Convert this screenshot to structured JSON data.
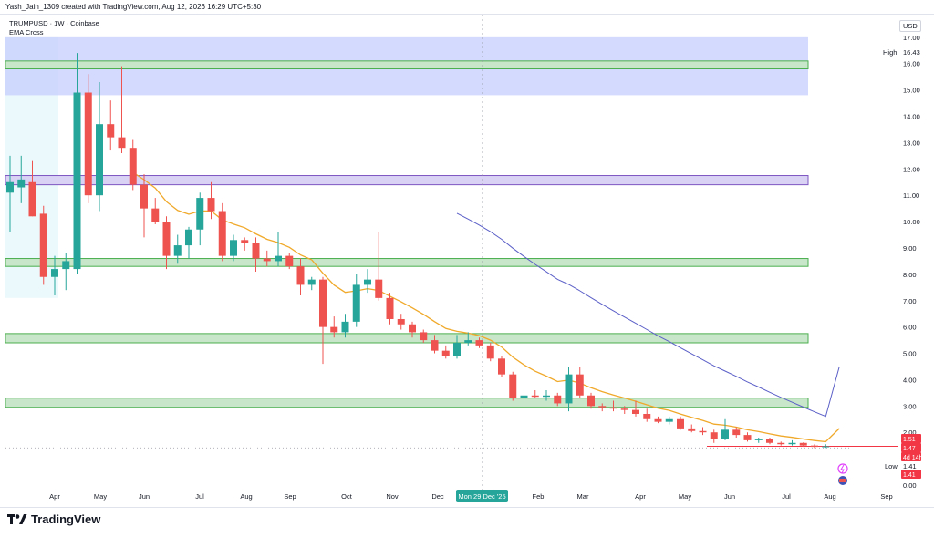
{
  "header": {
    "text": "Yash_Jain_1309 created with TradingView.com, Aug 12, 2026 16:29 UTC+5:30"
  },
  "legend": {
    "symbol": "TRUMPUSD · 1W · Coinbase",
    "indicator": "EMA Cross"
  },
  "currency": "USD",
  "brand": {
    "name": "TradingView"
  },
  "colors": {
    "up": "#26a69a",
    "down": "#ef5350",
    "ema_fast": "#f0a92a",
    "ema_slow": "#5b5fc7",
    "zone_green": "#c8e6c9",
    "zone_green_border": "#4caf50",
    "zone_blue": "#c5cdfd",
    "zone_purple": "#d9d2f5",
    "zone_purple_border": "#7e57c2",
    "last_price": "#f23645"
  },
  "chart_data": {
    "type": "candlestick",
    "title": "TRUMPUSD · 1W · Coinbase",
    "ylim": [
      0,
      17.6
    ],
    "y_ticks": [
      "17.00",
      "16.00",
      "15.00",
      "14.00",
      "13.00",
      "12.00",
      "11.00",
      "10.00",
      "9.00",
      "8.00",
      "7.00",
      "6.00",
      "5.00",
      "4.00",
      "3.00",
      "2.00",
      "0.00"
    ],
    "x_ticks": [
      "Apr",
      "May",
      "Jun",
      "Jul",
      "Aug",
      "Sep",
      "Oct",
      "Nov",
      "Dec",
      "Feb",
      "Mar",
      "Apr",
      "May",
      "Jun",
      "Jul",
      "Aug",
      "Sep"
    ],
    "crosshair_label": "Mon 29 Dec '25",
    "candles": [
      {
        "o": 11.1,
        "h": 12.5,
        "l": 9.6,
        "c": 11.5
      },
      {
        "o": 11.3,
        "h": 12.5,
        "l": 10.7,
        "c": 11.6
      },
      {
        "o": 11.5,
        "h": 12.3,
        "l": 10.2,
        "c": 10.2
      },
      {
        "o": 10.3,
        "h": 10.6,
        "l": 7.6,
        "c": 7.9
      },
      {
        "o": 7.9,
        "h": 8.7,
        "l": 7.2,
        "c": 8.2
      },
      {
        "o": 8.2,
        "h": 8.8,
        "l": 7.4,
        "c": 8.5
      },
      {
        "o": 8.2,
        "h": 16.4,
        "l": 8.0,
        "c": 14.9
      },
      {
        "o": 14.9,
        "h": 15.6,
        "l": 10.7,
        "c": 11.0
      },
      {
        "o": 11.0,
        "h": 15.3,
        "l": 10.4,
        "c": 13.7
      },
      {
        "o": 13.7,
        "h": 14.6,
        "l": 12.7,
        "c": 13.2
      },
      {
        "o": 13.2,
        "h": 15.9,
        "l": 12.6,
        "c": 12.8
      },
      {
        "o": 12.8,
        "h": 13.1,
        "l": 11.2,
        "c": 11.4
      },
      {
        "o": 11.4,
        "h": 11.8,
        "l": 9.4,
        "c": 10.5
      },
      {
        "o": 10.5,
        "h": 10.9,
        "l": 9.9,
        "c": 10.0
      },
      {
        "o": 10.0,
        "h": 10.2,
        "l": 8.2,
        "c": 8.7
      },
      {
        "o": 8.7,
        "h": 9.5,
        "l": 8.4,
        "c": 9.1
      },
      {
        "o": 9.1,
        "h": 9.8,
        "l": 8.6,
        "c": 9.7
      },
      {
        "o": 9.7,
        "h": 11.1,
        "l": 9.1,
        "c": 10.9
      },
      {
        "o": 10.9,
        "h": 11.5,
        "l": 10.1,
        "c": 10.4
      },
      {
        "o": 10.4,
        "h": 10.7,
        "l": 8.5,
        "c": 8.7
      },
      {
        "o": 8.7,
        "h": 9.5,
        "l": 8.5,
        "c": 9.3
      },
      {
        "o": 9.3,
        "h": 9.4,
        "l": 8.9,
        "c": 9.2
      },
      {
        "o": 9.2,
        "h": 9.4,
        "l": 8.1,
        "c": 8.6
      },
      {
        "o": 8.6,
        "h": 8.9,
        "l": 8.3,
        "c": 8.5
      },
      {
        "o": 8.5,
        "h": 9.6,
        "l": 8.3,
        "c": 8.7
      },
      {
        "o": 8.7,
        "h": 8.8,
        "l": 8.2,
        "c": 8.3
      },
      {
        "o": 8.3,
        "h": 8.6,
        "l": 7.2,
        "c": 7.6
      },
      {
        "o": 7.6,
        "h": 7.9,
        "l": 7.4,
        "c": 7.8
      },
      {
        "o": 7.8,
        "h": 7.9,
        "l": 4.6,
        "c": 6.0
      },
      {
        "o": 6.0,
        "h": 6.4,
        "l": 5.6,
        "c": 5.8
      },
      {
        "o": 5.8,
        "h": 6.5,
        "l": 5.6,
        "c": 6.2
      },
      {
        "o": 6.2,
        "h": 8.0,
        "l": 6.0,
        "c": 7.6
      },
      {
        "o": 7.6,
        "h": 8.2,
        "l": 7.3,
        "c": 7.8
      },
      {
        "o": 7.8,
        "h": 9.6,
        "l": 7.0,
        "c": 7.1
      },
      {
        "o": 7.1,
        "h": 7.3,
        "l": 6.1,
        "c": 6.3
      },
      {
        "o": 6.3,
        "h": 6.5,
        "l": 5.9,
        "c": 6.1
      },
      {
        "o": 6.1,
        "h": 6.2,
        "l": 5.6,
        "c": 5.8
      },
      {
        "o": 5.8,
        "h": 5.9,
        "l": 5.4,
        "c": 5.5
      },
      {
        "o": 5.5,
        "h": 5.7,
        "l": 5.0,
        "c": 5.1
      },
      {
        "o": 5.1,
        "h": 5.3,
        "l": 4.8,
        "c": 4.9
      },
      {
        "o": 4.9,
        "h": 5.7,
        "l": 4.8,
        "c": 5.4
      },
      {
        "o": 5.4,
        "h": 5.8,
        "l": 5.3,
        "c": 5.5
      },
      {
        "o": 5.5,
        "h": 5.6,
        "l": 5.2,
        "c": 5.3
      },
      {
        "o": 5.3,
        "h": 5.4,
        "l": 4.7,
        "c": 4.8
      },
      {
        "o": 4.8,
        "h": 4.9,
        "l": 4.1,
        "c": 4.2
      },
      {
        "o": 4.2,
        "h": 4.3,
        "l": 3.2,
        "c": 3.3
      },
      {
        "o": 3.3,
        "h": 3.6,
        "l": 3.1,
        "c": 3.4
      },
      {
        "o": 3.4,
        "h": 3.6,
        "l": 3.3,
        "c": 3.35
      },
      {
        "o": 3.35,
        "h": 3.6,
        "l": 3.2,
        "c": 3.4
      },
      {
        "o": 3.4,
        "h": 3.5,
        "l": 3.0,
        "c": 3.1
      },
      {
        "o": 3.1,
        "h": 4.5,
        "l": 2.8,
        "c": 4.2
      },
      {
        "o": 4.2,
        "h": 4.5,
        "l": 3.3,
        "c": 3.4
      },
      {
        "o": 3.4,
        "h": 3.5,
        "l": 2.9,
        "c": 3.0
      },
      {
        "o": 3.0,
        "h": 3.1,
        "l": 2.8,
        "c": 2.95
      },
      {
        "o": 2.95,
        "h": 3.2,
        "l": 2.8,
        "c": 2.9
      },
      {
        "o": 2.9,
        "h": 3.0,
        "l": 2.7,
        "c": 2.85
      },
      {
        "o": 2.85,
        "h": 3.2,
        "l": 2.6,
        "c": 2.7
      },
      {
        "o": 2.7,
        "h": 2.9,
        "l": 2.4,
        "c": 2.5
      },
      {
        "o": 2.5,
        "h": 2.6,
        "l": 2.35,
        "c": 2.4
      },
      {
        "o": 2.4,
        "h": 2.6,
        "l": 2.3,
        "c": 2.5
      },
      {
        "o": 2.5,
        "h": 2.6,
        "l": 2.1,
        "c": 2.15
      },
      {
        "o": 2.15,
        "h": 2.3,
        "l": 2.0,
        "c": 2.05
      },
      {
        "o": 2.05,
        "h": 2.2,
        "l": 1.9,
        "c": 2.0
      },
      {
        "o": 2.0,
        "h": 2.1,
        "l": 1.6,
        "c": 1.75
      },
      {
        "o": 1.75,
        "h": 2.5,
        "l": 1.7,
        "c": 2.1
      },
      {
        "o": 2.1,
        "h": 2.2,
        "l": 1.8,
        "c": 1.9
      },
      {
        "o": 1.9,
        "h": 2.0,
        "l": 1.65,
        "c": 1.7
      },
      {
        "o": 1.7,
        "h": 1.8,
        "l": 1.6,
        "c": 1.75
      },
      {
        "o": 1.75,
        "h": 1.8,
        "l": 1.55,
        "c": 1.6
      },
      {
        "o": 1.6,
        "h": 1.65,
        "l": 1.5,
        "c": 1.55
      },
      {
        "o": 1.55,
        "h": 1.7,
        "l": 1.5,
        "c": 1.6
      },
      {
        "o": 1.6,
        "h": 1.62,
        "l": 1.45,
        "c": 1.5
      },
      {
        "o": 1.5,
        "h": 1.55,
        "l": 1.4,
        "c": 1.45
      },
      {
        "o": 1.45,
        "h": 1.55,
        "l": 1.41,
        "c": 1.47
      }
    ],
    "ema_fast_start_index": 11,
    "ema_slow_start_index": 40,
    "ema_slow_end": 4.5,
    "zones": [
      {
        "kind": "blue",
        "from": 14.8,
        "to": 17.0
      },
      {
        "kind": "green",
        "from": 15.8,
        "to": 16.1
      },
      {
        "kind": "purple",
        "from": 11.4,
        "to": 11.75
      },
      {
        "kind": "green",
        "from": 8.3,
        "to": 8.6
      },
      {
        "kind": "green",
        "from": 5.4,
        "to": 5.75
      },
      {
        "kind": "green",
        "from": 2.95,
        "to": 3.3
      }
    ],
    "high_value": 16.43,
    "low_value": 1.41,
    "labels": {
      "high": "High",
      "high_price": "16.43",
      "low": "Low",
      "low_price": "1.41",
      "low_tag": "1.41",
      "price_1": "1.51",
      "price_2": "1.47",
      "countdown": "4d 14h"
    }
  }
}
